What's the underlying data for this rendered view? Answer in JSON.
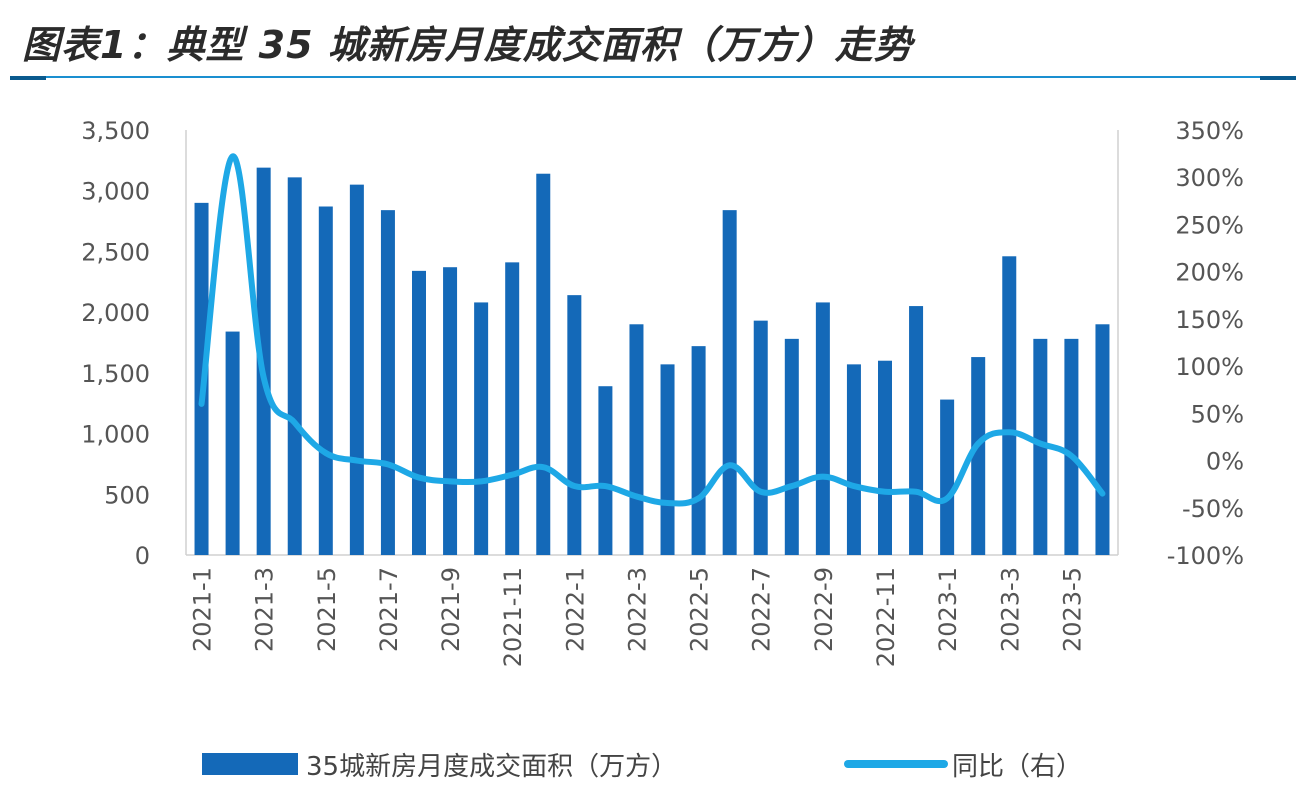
{
  "title": "图表1：典型 35 城新房月度成交面积（万方）走势",
  "colors": {
    "bar": "#1469b8",
    "line": "#1ea8e6",
    "axis": "#d0d0d0"
  },
  "chart_data": {
    "type": "bar",
    "categories": [
      "2021-1",
      "2021-2",
      "2021-3",
      "2021-4",
      "2021-5",
      "2021-6",
      "2021-7",
      "2021-8",
      "2021-9",
      "2021-10",
      "2021-11",
      "2021-12",
      "2022-1",
      "2022-2",
      "2022-3",
      "2022-4",
      "2022-5",
      "2022-6",
      "2022-7",
      "2022-8",
      "2022-9",
      "2022-10",
      "2022-11",
      "2022-12",
      "2023-1",
      "2023-2",
      "2023-3",
      "2023-4",
      "2023-5",
      "2023-6"
    ],
    "x_tick_labels": [
      "2021-1",
      "2021-3",
      "2021-5",
      "2021-7",
      "2021-9",
      "2021-11",
      "2022-1",
      "2022-3",
      "2022-5",
      "2022-7",
      "2022-9",
      "2022-11",
      "2023-1",
      "2023-3",
      "2023-5"
    ],
    "series": [
      {
        "name": "35城新房月度成交面积（万方）",
        "type": "bar",
        "axis": "left",
        "values": [
          2900,
          1840,
          3190,
          3110,
          2870,
          3050,
          2840,
          2340,
          2370,
          2080,
          2410,
          3140,
          2140,
          1390,
          1900,
          1570,
          1720,
          2840,
          1930,
          1780,
          2080,
          1570,
          1600,
          2050,
          1280,
          1630,
          2460,
          1780,
          1780,
          1900
        ]
      },
      {
        "name": "同比（右）",
        "type": "line",
        "axis": "right",
        "values": [
          60,
          322,
          88,
          40,
          8,
          0,
          -4,
          -18,
          -22,
          -22,
          -15,
          -7,
          -27,
          -27,
          -38,
          -45,
          -40,
          -5,
          -33,
          -27,
          -17,
          -27,
          -33,
          -33,
          -40,
          18,
          30,
          18,
          5,
          -35
        ]
      }
    ],
    "y_left": {
      "ylim": [
        0,
        3500
      ],
      "ticks": [
        "0",
        "500",
        "1,000",
        "1,500",
        "2,000",
        "2,500",
        "3,000",
        "3,500"
      ]
    },
    "y_right": {
      "ylim": [
        -100,
        350
      ],
      "ticks": [
        "-100%",
        "-50%",
        "0%",
        "50%",
        "100%",
        "150%",
        "200%",
        "250%",
        "300%",
        "350%"
      ]
    },
    "grid": false,
    "legend": "bottom"
  }
}
